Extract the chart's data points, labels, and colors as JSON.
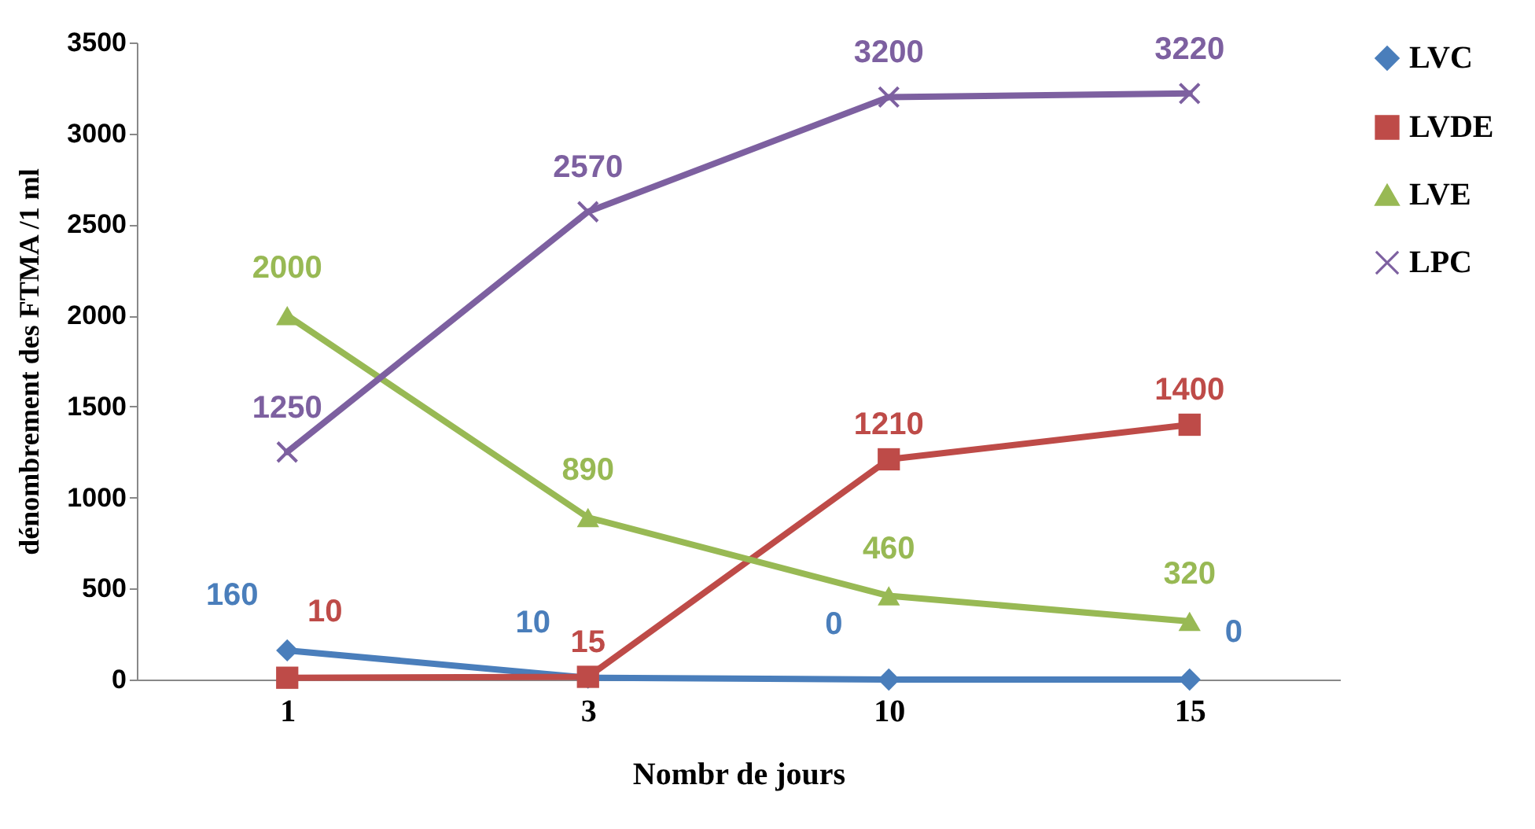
{
  "chart_data": {
    "type": "line",
    "xlabel": "Nombr de jours",
    "ylabel": "dénombrement des FTMA /1 ml",
    "categories": [
      "1",
      "3",
      "10",
      "15"
    ],
    "ylim": [
      0,
      3500
    ],
    "yticks": [
      0,
      500,
      1000,
      1500,
      2000,
      2500,
      3000,
      3500
    ],
    "legend": "right",
    "data_labels": true,
    "series": [
      {
        "name": "LVC",
        "color": "#4a7ebb",
        "marker": "diamond",
        "values": [
          160,
          10,
          0,
          0
        ]
      },
      {
        "name": "LVDE",
        "color": "#be4b48",
        "marker": "square",
        "values": [
          10,
          15,
          1210,
          1400
        ]
      },
      {
        "name": "LVE",
        "color": "#98b954",
        "marker": "triangle",
        "values": [
          2000,
          890,
          460,
          320
        ]
      },
      {
        "name": "LPC",
        "color": "#7d60a0",
        "marker": "cross",
        "values": [
          1250,
          2570,
          3200,
          3220
        ]
      }
    ]
  }
}
